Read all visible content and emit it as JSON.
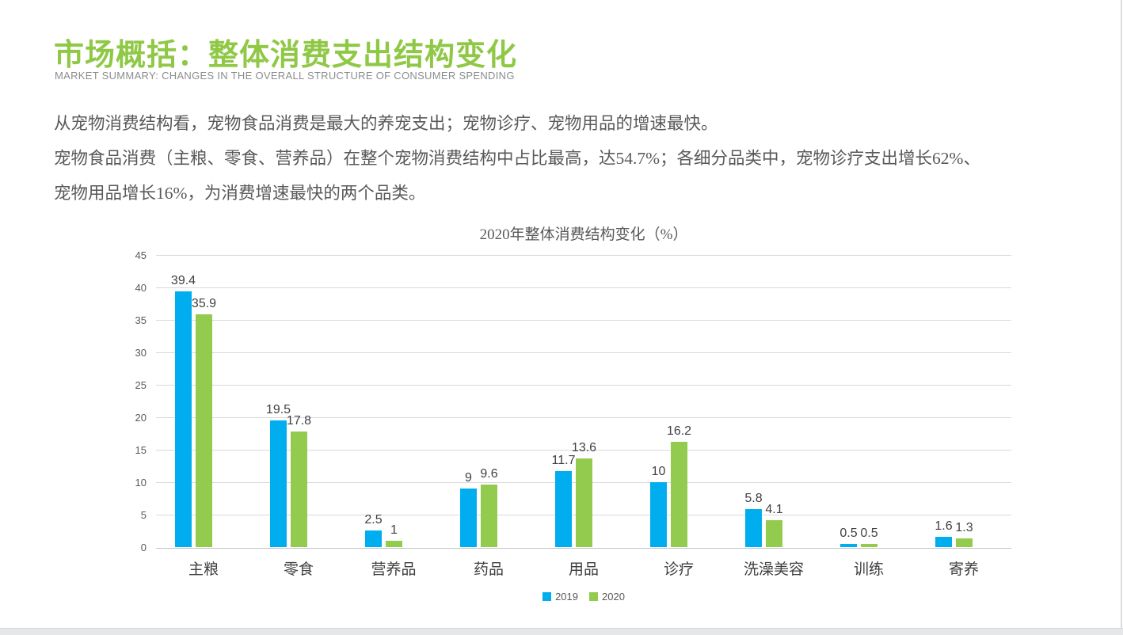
{
  "header": {
    "title": "市场概括：整体消费支出结构变化",
    "subtitle": "MARKET SUMMARY: CHANGES IN THE OVERALL STRUCTURE OF CONSUMER SPENDING"
  },
  "body": {
    "lines": [
      "从宠物消费结构看，宠物食品消费是最大的养宠支出；宠物诊疗、宠物用品的增速最快。",
      "宠物食品消费（主粮、零食、营养品）在整个宠物消费结构中占比最高，达54.7%；各细分品类中，宠物诊疗支出增长62%、",
      "宠物用品增长16%，为消费增速最快的两个品类。"
    ]
  },
  "chart_data": {
    "type": "bar",
    "title": "2020年整体消费结构变化（%）",
    "categories": [
      "主粮",
      "零食",
      "营养品",
      "药品",
      "用品",
      "诊疗",
      "洗澡美容",
      "训练",
      "寄养"
    ],
    "series": [
      {
        "name": "2019",
        "color": "#00AEEF",
        "values": [
          39.4,
          19.5,
          2.5,
          9,
          11.7,
          10,
          5.8,
          0.5,
          1.6
        ]
      },
      {
        "name": "2020",
        "color": "#92CB4E",
        "values": [
          35.9,
          17.8,
          1,
          9.6,
          13.6,
          16.2,
          4.1,
          0.5,
          1.3
        ]
      }
    ],
    "xlabel": "",
    "ylabel": "",
    "ylim": [
      0,
      45
    ],
    "yticks": [
      0,
      5,
      10,
      15,
      20,
      25,
      30,
      35,
      40,
      45
    ],
    "grid": true,
    "legend_position": "bottom",
    "data_labels": true
  },
  "colors": {
    "title_green": "#8FC845",
    "body_text": "#58595B",
    "axis_text": "#595959",
    "label_text": "#404040",
    "gridline": "#D9D9D9"
  }
}
